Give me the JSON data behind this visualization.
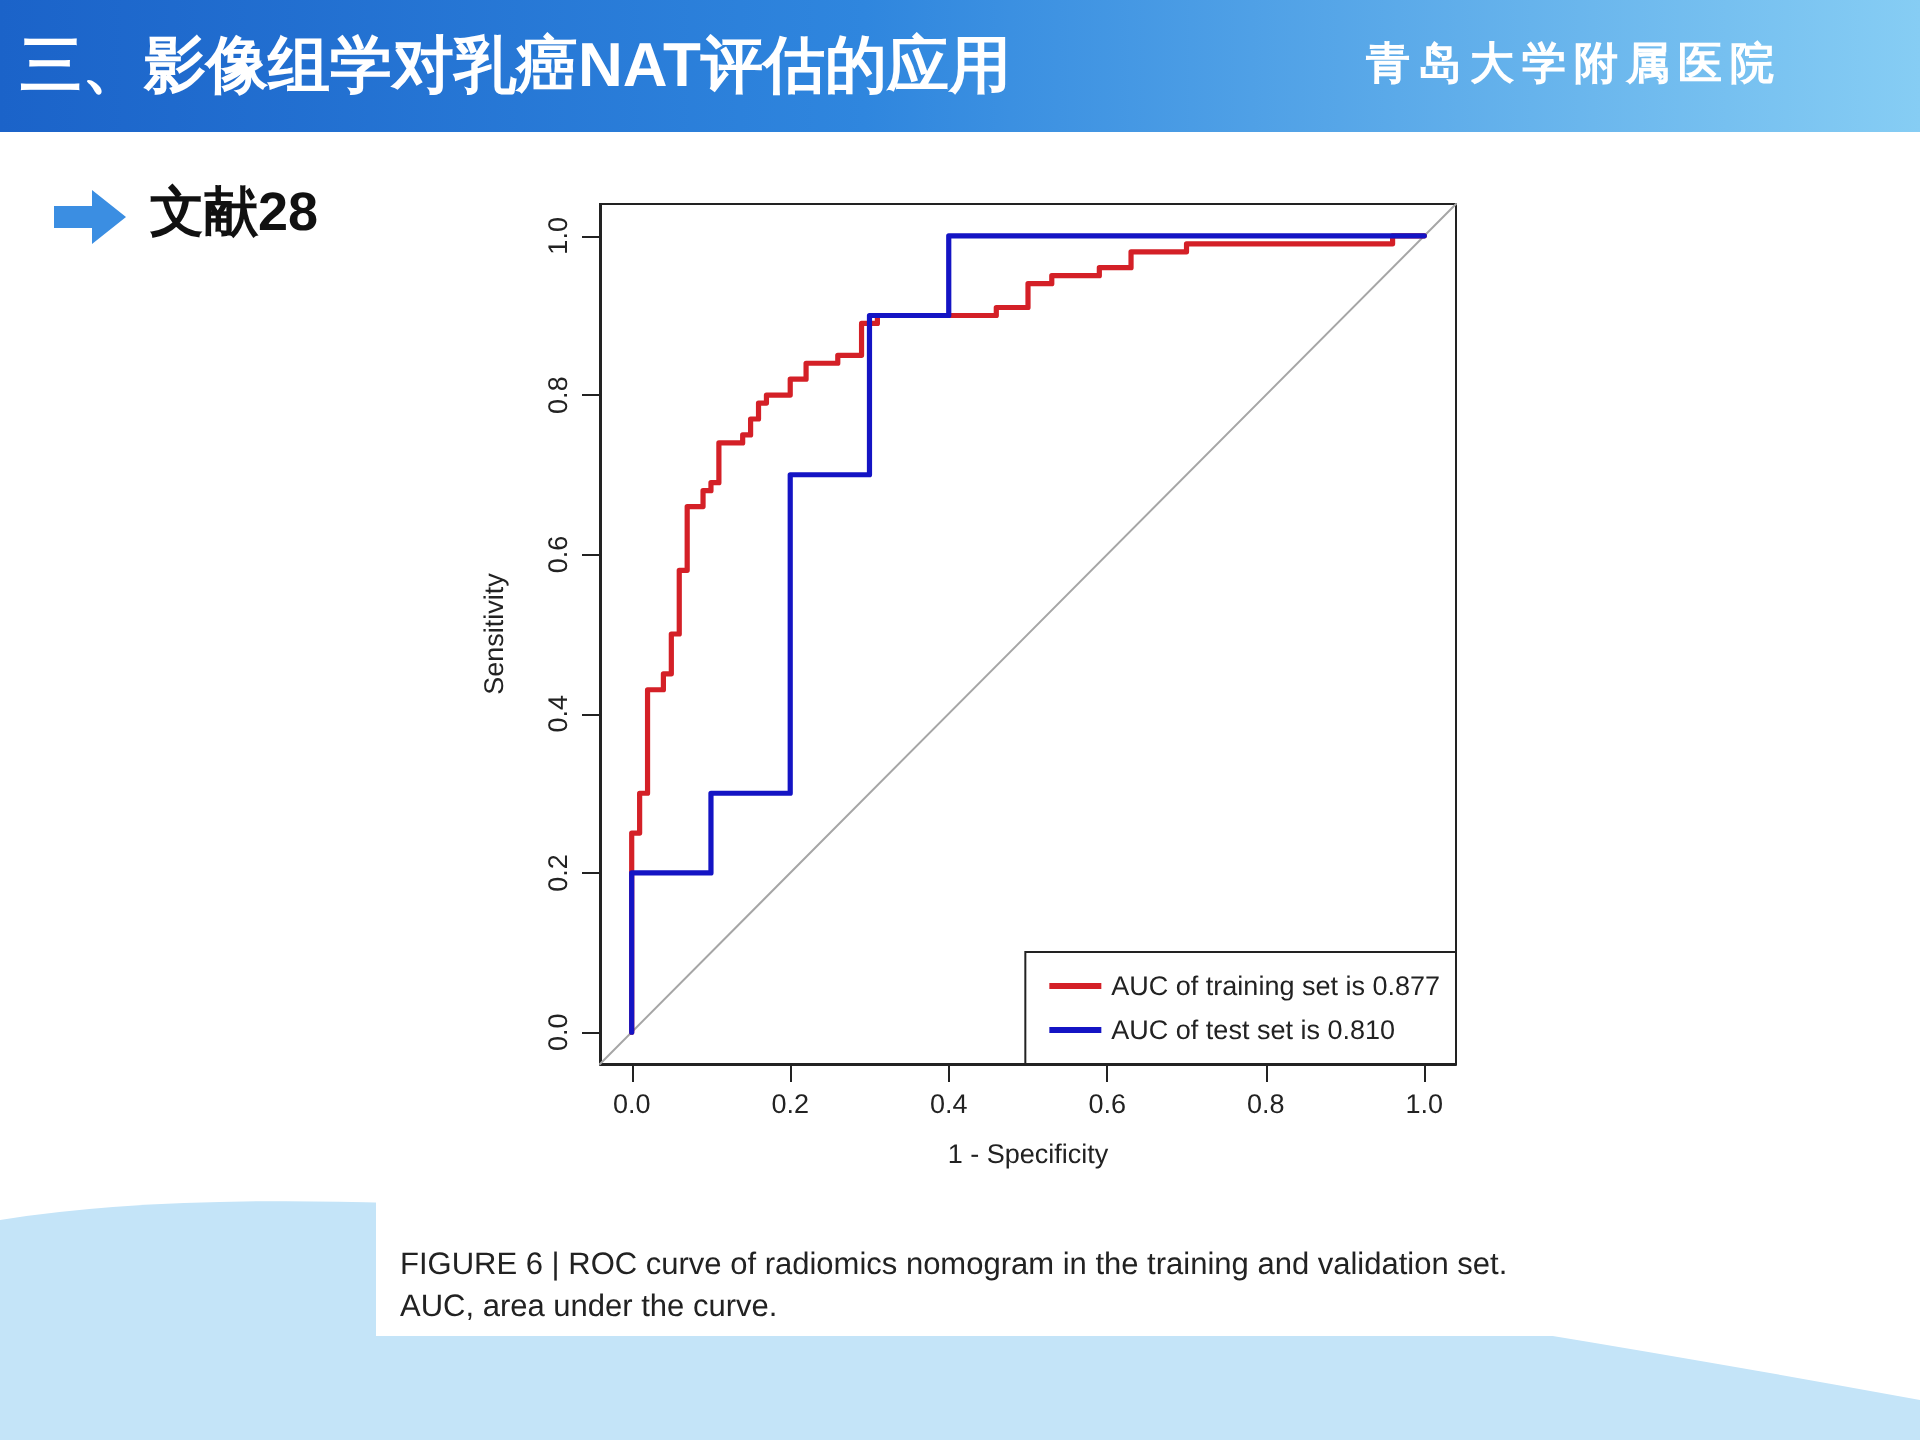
{
  "chart_data": {
    "type": "step",
    "title": "三、影像组学对乳癌NAT评估的应用",
    "subtitle": "文献28",
    "xlabel": "1 - Specificity",
    "ylabel": "Sensitivity",
    "annotations": [
      "青岛大学附属医院",
      "FIGURE 6 | ROC curve of radiomics nomogram in the training and validation set. AUC, area under the curve."
    ],
    "series": [
      {
        "type": "line",
        "color": "#a6a6a6",
        "x": [
          -0.04,
          1.04
        ],
        "values": [
          -0.04,
          1.04
        ]
      },
      {
        "name": "AUC of training set is 0.877",
        "color": "#d42027",
        "x": [
          0,
          0,
          0,
          0.01,
          0.02,
          0.04,
          0.05,
          0.06,
          0.07,
          0.09,
          0.1,
          0.11,
          0.14,
          0.15,
          0.16,
          0.17,
          0.2,
          0.22,
          0.26,
          0.29,
          0.31,
          0.46,
          0.5,
          0.53,
          0.59,
          0.63,
          0.7,
          0.96,
          1.0
        ],
        "values": [
          0,
          0.2,
          0.25,
          0.3,
          0.43,
          0.45,
          0.5,
          0.58,
          0.66,
          0.68,
          0.69,
          0.74,
          0.75,
          0.77,
          0.79,
          0.8,
          0.82,
          0.84,
          0.85,
          0.89,
          0.9,
          0.91,
          0.94,
          0.95,
          0.96,
          0.98,
          0.99,
          1.0,
          1.0
        ]
      },
      {
        "name": "AUC of test set is 0.810",
        "color": "#1414c4",
        "x": [
          0,
          0,
          0.1,
          0.2,
          0.3,
          0.4,
          1.0
        ],
        "values": [
          0,
          0.2,
          0.3,
          0.7,
          0.9,
          1.0,
          1.0
        ]
      }
    ],
    "xlim": [
      -0.04,
      1.04
    ],
    "ylim": [
      -0.04,
      1.04
    ],
    "xticks": [
      {
        "value": 0,
        "label": "0.0"
      },
      0.2,
      0.4,
      0.6,
      0.8,
      {
        "value": 1,
        "label": "1.0"
      }
    ],
    "yticks": [
      {
        "value": 0,
        "label": "0.0"
      },
      0.2,
      0.4,
      0.6,
      0.8,
      {
        "value": 1,
        "label": "1.0"
      }
    ],
    "grid": false,
    "legend": "bottom right",
    "marker": "none"
  }
}
